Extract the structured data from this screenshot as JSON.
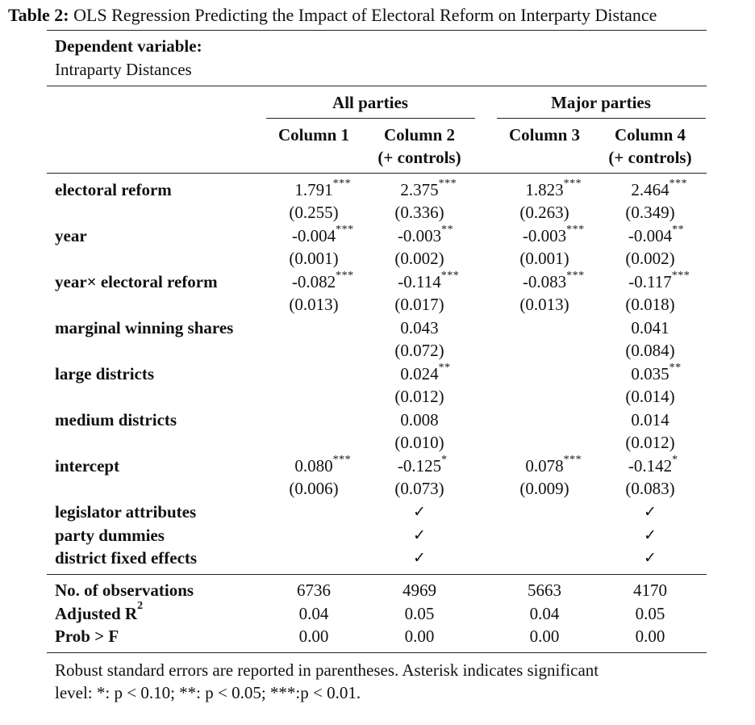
{
  "table": {
    "label": "Table 2:",
    "title": "OLS Regression Predicting the Impact of Electoral Reform on Interparty Distance",
    "dep_var_label": "Dependent variable:",
    "dep_var_value": "Intraparty Distances",
    "group_headers": [
      "All parties",
      "Major parties"
    ],
    "column_headers": [
      {
        "line1": "Column 1",
        "line2": ""
      },
      {
        "line1": "Column 2",
        "line2": "(+ controls)"
      },
      {
        "line1": "Column 3",
        "line2": ""
      },
      {
        "line1": "Column 4",
        "line2": "(+ controls)"
      }
    ],
    "rows": [
      {
        "name": "electoral reform",
        "coef": [
          [
            "1.791",
            "***"
          ],
          [
            "2.375",
            "***"
          ],
          [
            "1.823",
            "***"
          ],
          [
            "2.464",
            "***"
          ]
        ],
        "se": [
          "(0.255)",
          "(0.336)",
          "(0.263)",
          "(0.349)"
        ]
      },
      {
        "name": "year",
        "coef": [
          [
            "-0.004",
            "***"
          ],
          [
            "-0.003",
            "**"
          ],
          [
            "-0.003",
            "***"
          ],
          [
            "-0.004",
            "**"
          ]
        ],
        "se": [
          "(0.001)",
          "(0.002)",
          "(0.001)",
          "(0.002)"
        ]
      },
      {
        "name": "year× electoral reform",
        "coef": [
          [
            "-0.082",
            "***"
          ],
          [
            "-0.114",
            "***"
          ],
          [
            "-0.083",
            "***"
          ],
          [
            "-0.117",
            "***"
          ]
        ],
        "se": [
          "(0.013)",
          "(0.017)",
          "(0.013)",
          "(0.018)"
        ]
      },
      {
        "name": "marginal winning shares",
        "coef": [
          [
            "",
            ""
          ],
          [
            "0.043",
            ""
          ],
          [
            "",
            ""
          ],
          [
            "0.041",
            ""
          ]
        ],
        "se": [
          "",
          "(0.072)",
          "",
          "(0.084)"
        ]
      },
      {
        "name": "large districts",
        "coef": [
          [
            "",
            ""
          ],
          [
            "0.024",
            "**"
          ],
          [
            "",
            ""
          ],
          [
            "0.035",
            "**"
          ]
        ],
        "se": [
          "",
          "(0.012)",
          "",
          "(0.014)"
        ]
      },
      {
        "name": "medium districts",
        "coef": [
          [
            "",
            ""
          ],
          [
            "0.008",
            ""
          ],
          [
            "",
            ""
          ],
          [
            "0.014",
            ""
          ]
        ],
        "se": [
          "",
          "(0.010)",
          "",
          "(0.012)"
        ]
      },
      {
        "name": "intercept",
        "coef": [
          [
            "0.080",
            "***"
          ],
          [
            "-0.125",
            "*"
          ],
          [
            "0.078",
            "***"
          ],
          [
            "-0.142",
            "*"
          ]
        ],
        "se": [
          "(0.006)",
          "(0.073)",
          "(0.009)",
          "(0.083)"
        ]
      }
    ],
    "controls": [
      {
        "name": "legislator attributes",
        "marks": [
          "",
          "✓",
          "",
          "✓"
        ]
      },
      {
        "name": "party dummies",
        "marks": [
          "",
          "✓",
          "",
          "✓"
        ]
      },
      {
        "name": "district fixed effects",
        "marks": [
          "",
          "✓",
          "",
          "✓"
        ]
      }
    ],
    "stats": [
      {
        "name": "No. of observations",
        "sup": "",
        "values": [
          "6736",
          "4969",
          "5663",
          "4170"
        ]
      },
      {
        "name": "Adjusted R",
        "sup": "2",
        "values": [
          "0.04",
          "0.05",
          "0.04",
          "0.05"
        ]
      },
      {
        "name": "Prob > F",
        "sup": "",
        "values": [
          "0.00",
          "0.00",
          "0.00",
          "0.00"
        ]
      }
    ],
    "note_line1": "Robust standard errors are reported in parentheses. Asterisk indicates significant",
    "note_line2": "level: *: p < 0.10; **: p < 0.05; ***:p < 0.01."
  }
}
